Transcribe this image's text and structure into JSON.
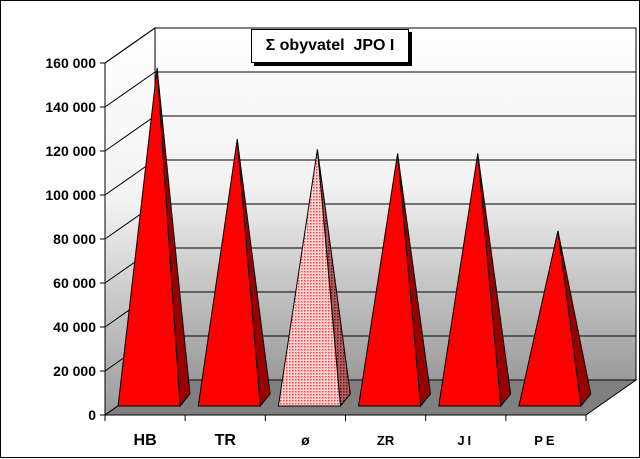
{
  "chart_data": {
    "type": "bar",
    "shape": "3d-pyramid",
    "title": "Σ obyvatel  JPO I",
    "xlabel": "",
    "ylabel": "",
    "categories": [
      "HB",
      "TR",
      "ø",
      "ZR",
      "JI",
      "PE"
    ],
    "values": [
      163000,
      128000,
      123000,
      121000,
      121000,
      83000
    ],
    "ylim": [
      0,
      160000
    ],
    "yticks": [
      0,
      20000,
      40000,
      60000,
      80000,
      100000,
      120000,
      140000,
      160000
    ],
    "ytick_labels": [
      "0",
      "20 000",
      "40 000",
      "60 000",
      "80 000",
      "100 000",
      "120 000",
      "140 000",
      "160 000"
    ],
    "grid": true,
    "legend": "none",
    "colors": {
      "bar_front": "#ff0000",
      "bar_side": "#990000",
      "highlight_front": "#ff9999",
      "highlight_pattern": "#ff0000",
      "highlight_side": "#8a2a2a",
      "floor": "#808080",
      "wall_top": "#ffffff",
      "wall_bottom": "#9a9a9a"
    },
    "highlight_category": "ø"
  }
}
